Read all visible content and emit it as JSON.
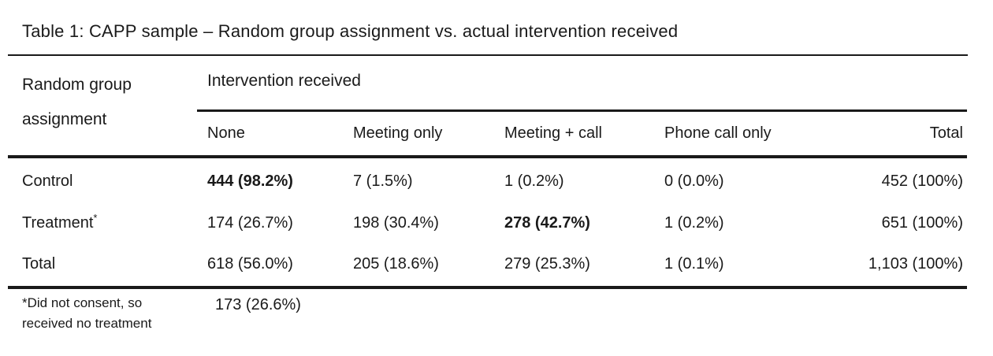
{
  "chart_data": {
    "type": "table",
    "title": "Table 1: CAPP sample – Random group assignment vs. actual intervention received",
    "row_dimension": {
      "line1": "Random group",
      "line2": "assignment"
    },
    "column_group": "Intervention received",
    "columns": [
      "None",
      "Meeting only",
      "Meeting + call",
      "Phone call only",
      "Total"
    ],
    "rows": [
      {
        "label": "Control",
        "sup": "",
        "cells": [
          "444 (98.2%)",
          "7 (1.5%)",
          "1 (0.2%)",
          "0 (0.0%)",
          "452 (100%)"
        ]
      },
      {
        "label": "Treatment",
        "sup": "*",
        "cells": [
          "174 (26.7%)",
          "198 (30.4%)",
          "278 (42.7%)",
          "1 (0.2%)",
          "651 (100%)"
        ]
      },
      {
        "label": "Total",
        "sup": "",
        "cells": [
          "618 (56.0%)",
          "205 (18.6%)",
          "279 (25.3%)",
          "1 (0.1%)",
          "1,103 (100%)"
        ]
      }
    ],
    "emphasized_cells": [
      {
        "row": "Control",
        "column": "None",
        "value": "444 (98.2%)"
      },
      {
        "row": "Treatment",
        "column": "Meeting + call",
        "value": "278 (42.7%)"
      }
    ],
    "footnote": {
      "line1": "*Did not consent, so",
      "line2": "received no treatment",
      "value": "173 (26.6%)"
    },
    "layout_hints": {
      "grid": "off",
      "bold_cells": "row0-col0, row1-col2",
      "total_column_alignment": "right"
    }
  },
  "colors": {
    "text": "#1a1a1a",
    "rule": "#1a1a1a",
    "background": "#ffffff"
  }
}
